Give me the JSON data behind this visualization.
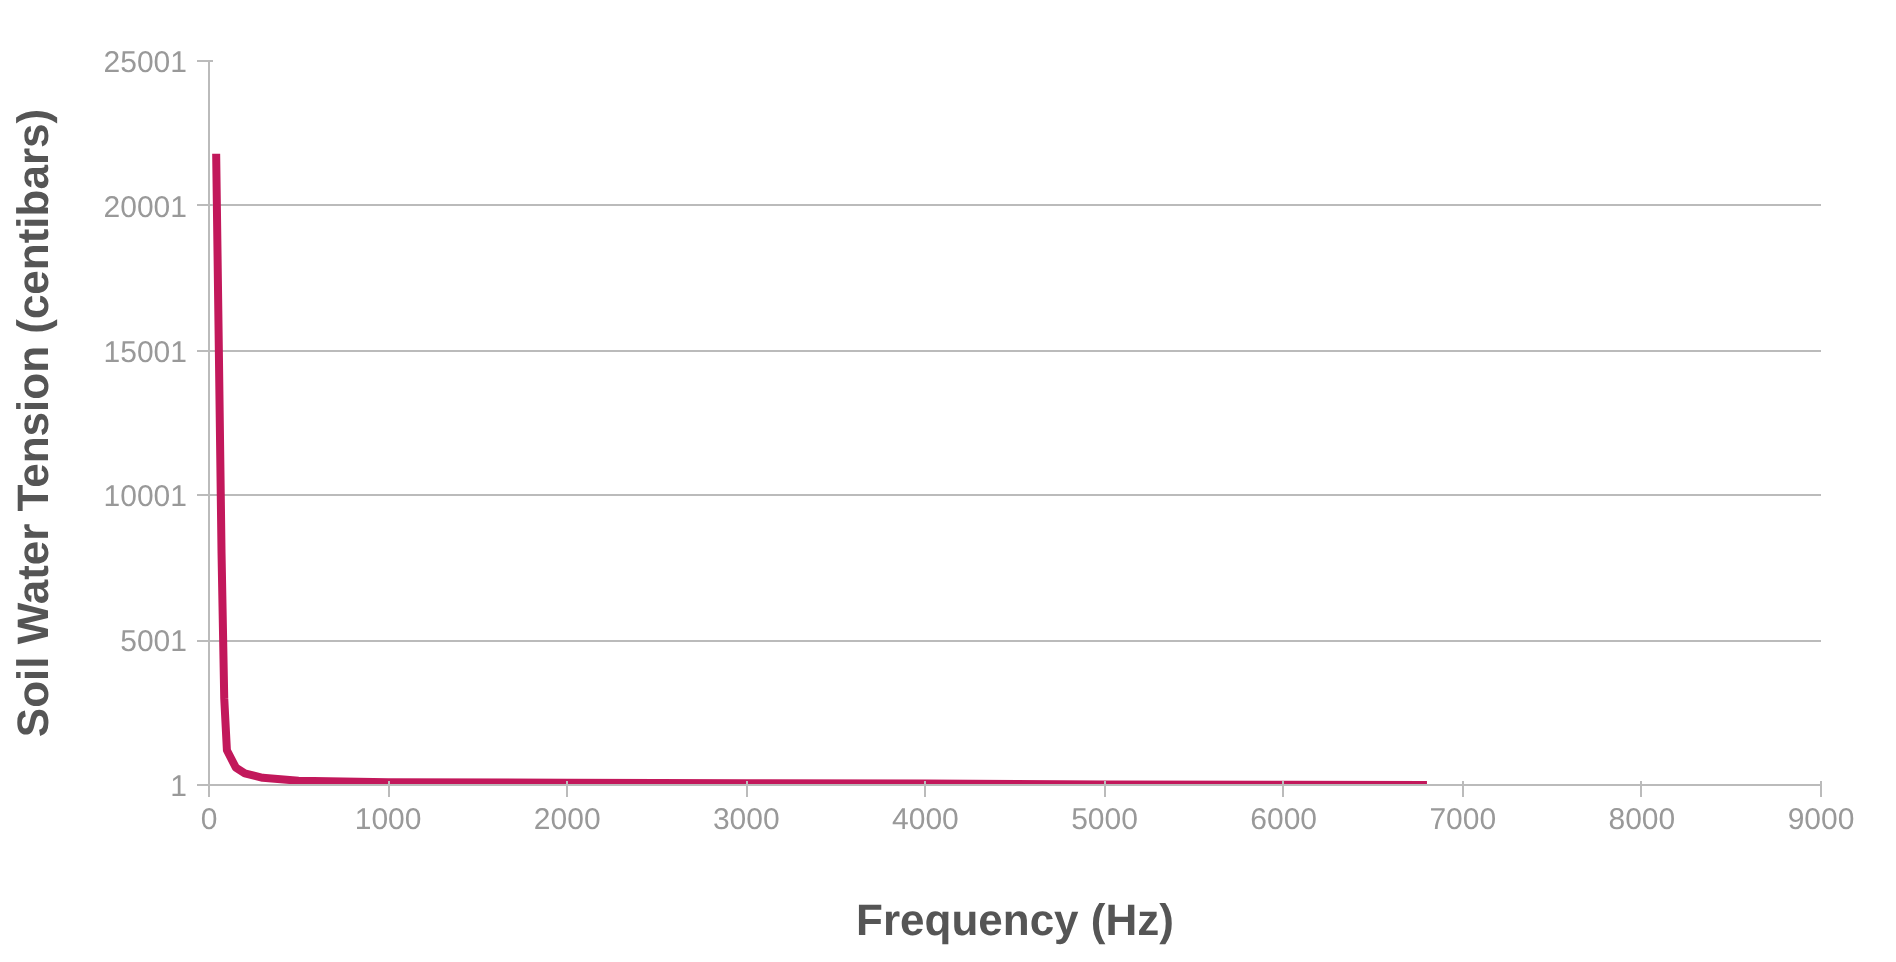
{
  "chart_data": {
    "type": "line",
    "xlabel": "Frequency (Hz)",
    "ylabel": "Soil Water Tension (centibars)",
    "x": [
      40,
      55,
      70,
      85,
      100,
      150,
      200,
      300,
      500,
      1000,
      2000,
      3000,
      4000,
      5000,
      6000,
      6800
    ],
    "series": [
      {
        "color": "#c2185b",
        "values": [
          21800,
          15000,
          8000,
          3000,
          1200,
          600,
          400,
          250,
          150,
          100,
          80,
          60,
          50,
          20,
          10,
          1
        ]
      }
    ],
    "xlim": [
      0,
      9000
    ],
    "xticks": [
      0,
      1000,
      2000,
      3000,
      4000,
      5000,
      6000,
      7000,
      8000,
      9000
    ],
    "ylim": [
      1,
      25001
    ],
    "yticks": [
      1,
      5001,
      10001,
      15001,
      20001,
      25001
    ],
    "grid": "y",
    "marker": "none",
    "line_style": "solid"
  }
}
